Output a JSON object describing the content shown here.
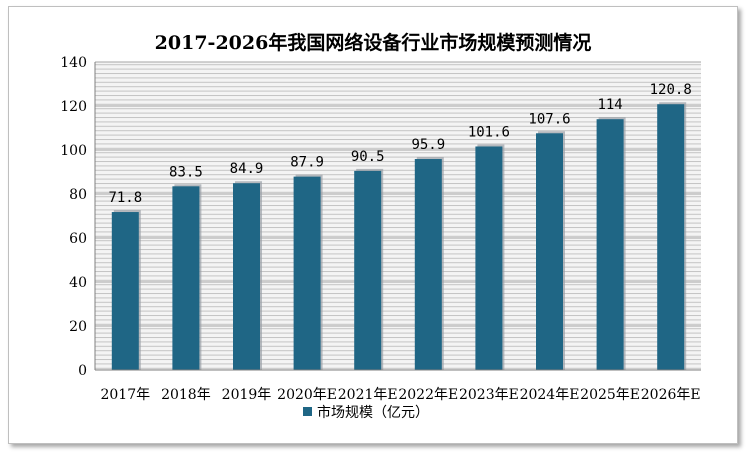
{
  "chart_data": {
    "type": "bar",
    "title": "2017-2026年我国网络设备行业市场规模预测情况",
    "categories": [
      "2017年",
      "2018年",
      "2019年",
      "2020年E",
      "2021年E",
      "2022年E",
      "2023年E",
      "2024年E",
      "2025年E",
      "2026年E"
    ],
    "series": [
      {
        "name": "市场规模（亿元）",
        "values": [
          71.8,
          83.5,
          84.9,
          87.9,
          90.5,
          95.9,
          101.6,
          107.6,
          114,
          120.8
        ],
        "value_labels": [
          "71.8",
          "83.5",
          "84.9",
          "87.9",
          "90.5",
          "95.9",
          "101.6",
          "107.6",
          "114",
          "120.8"
        ],
        "color": "#1f6685"
      }
    ],
    "xlabel": "",
    "ylabel": "",
    "ylim": [
      0,
      140
    ],
    "yticks": [
      0,
      20,
      40,
      60,
      80,
      100,
      120,
      140
    ],
    "grid": true,
    "legend": "bottom-center"
  }
}
